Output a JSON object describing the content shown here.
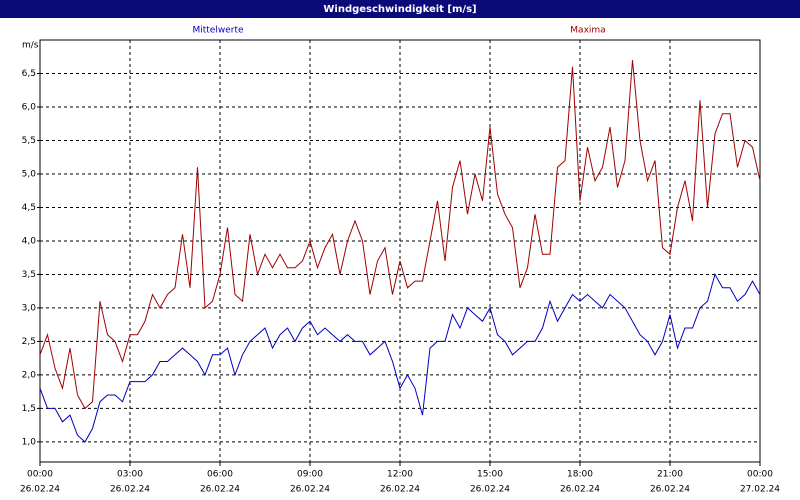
{
  "chart_data": {
    "type": "line",
    "title": "Windgeschwindigkeit [m/s]",
    "y_label": "m/s",
    "grid": true,
    "xlim": [
      0,
      24
    ],
    "xticks": [
      {
        "value": 0,
        "label": "00:00"
      },
      {
        "value": 3,
        "label": "03:00"
      },
      {
        "value": 6,
        "label": "06:00"
      },
      {
        "value": 9,
        "label": "09:00"
      },
      {
        "value": 12,
        "label": "12:00"
      },
      {
        "value": 15,
        "label": "15:00"
      },
      {
        "value": 18,
        "label": "18:00"
      },
      {
        "value": 21,
        "label": "21:00"
      },
      {
        "value": 24,
        "label": "00:00"
      }
    ],
    "xtick_dates": [
      "26.02.24",
      "26.02.24",
      "26.02.24",
      "26.02.24",
      "26.02.24",
      "26.02.24",
      "26.02.24",
      "26.02.24",
      "27.02.24"
    ],
    "ylim": [
      0.7,
      7.0
    ],
    "yticks": [
      {
        "value": 1.0,
        "label": "1,0"
      },
      {
        "value": 1.5,
        "label": "1,5"
      },
      {
        "value": 2.0,
        "label": "2,0"
      },
      {
        "value": 2.5,
        "label": "2,5"
      },
      {
        "value": 3.0,
        "label": "3,0"
      },
      {
        "value": 3.5,
        "label": "3,5"
      },
      {
        "value": 4.0,
        "label": "4,0"
      },
      {
        "value": 4.5,
        "label": "4,5"
      },
      {
        "value": 5.0,
        "label": "5,0"
      },
      {
        "value": 5.5,
        "label": "5,5"
      },
      {
        "value": 6.0,
        "label": "6,0"
      },
      {
        "value": 6.5,
        "label": "6,5"
      }
    ],
    "x": [
      0,
      0.25,
      0.5,
      0.75,
      1,
      1.25,
      1.5,
      1.75,
      2,
      2.25,
      2.5,
      2.75,
      3,
      3.25,
      3.5,
      3.75,
      4,
      4.25,
      4.5,
      4.75,
      5,
      5.25,
      5.5,
      5.75,
      6,
      6.25,
      6.5,
      6.75,
      7,
      7.25,
      7.5,
      7.75,
      8,
      8.25,
      8.5,
      8.75,
      9,
      9.25,
      9.5,
      9.75,
      10,
      10.25,
      10.5,
      10.75,
      11,
      11.25,
      11.5,
      11.75,
      12,
      12.25,
      12.5,
      12.75,
      13,
      13.25,
      13.5,
      13.75,
      14,
      14.25,
      14.5,
      14.75,
      15,
      15.25,
      15.5,
      15.75,
      16,
      16.25,
      16.5,
      16.75,
      17,
      17.25,
      17.5,
      17.75,
      18,
      18.25,
      18.5,
      18.75,
      19,
      19.25,
      19.5,
      19.75,
      20,
      20.25,
      20.5,
      20.75,
      21,
      21.25,
      21.5,
      21.75,
      22,
      22.25,
      22.5,
      22.75,
      23,
      23.25,
      23.5,
      23.75,
      24
    ],
    "series": [
      {
        "name": "Mittelwerte",
        "color": "#0000c0",
        "values": [
          1.8,
          1.5,
          1.5,
          1.3,
          1.4,
          1.1,
          1.0,
          1.2,
          1.6,
          1.7,
          1.7,
          1.6,
          1.9,
          1.9,
          1.9,
          2.0,
          2.2,
          2.2,
          2.3,
          2.4,
          2.3,
          2.2,
          2.0,
          2.3,
          2.3,
          2.4,
          2.0,
          2.3,
          2.5,
          2.6,
          2.7,
          2.4,
          2.6,
          2.7,
          2.5,
          2.7,
          2.8,
          2.6,
          2.7,
          2.6,
          2.5,
          2.6,
          2.5,
          2.5,
          2.3,
          2.4,
          2.5,
          2.2,
          1.8,
          2.0,
          1.8,
          1.4,
          2.4,
          2.5,
          2.5,
          2.9,
          2.7,
          3.0,
          2.9,
          2.8,
          3.0,
          2.6,
          2.5,
          2.3,
          2.4,
          2.5,
          2.5,
          2.7,
          3.1,
          2.8,
          3.0,
          3.2,
          3.1,
          3.2,
          3.1,
          3.0,
          3.2,
          3.1,
          3.0,
          2.8,
          2.6,
          2.5,
          2.3,
          2.5,
          2.9,
          2.4,
          2.7,
          2.7,
          3.0,
          3.1,
          3.5,
          3.3,
          3.3,
          3.1,
          3.2,
          3.4,
          3.2
        ]
      },
      {
        "name": "Maxima",
        "color": "#a00000",
        "values": [
          2.3,
          2.6,
          2.1,
          1.8,
          2.4,
          1.7,
          1.5,
          1.6,
          3.1,
          2.6,
          2.5,
          2.2,
          2.6,
          2.6,
          2.8,
          3.2,
          3.0,
          3.2,
          3.3,
          4.1,
          3.3,
          5.1,
          3.0,
          3.1,
          3.5,
          4.2,
          3.2,
          3.1,
          4.1,
          3.5,
          3.8,
          3.6,
          3.8,
          3.6,
          3.6,
          3.7,
          4.0,
          3.6,
          3.9,
          4.1,
          3.5,
          4.0,
          4.3,
          4.0,
          3.2,
          3.7,
          3.9,
          3.2,
          3.7,
          3.3,
          3.4,
          3.4,
          4.0,
          4.6,
          3.7,
          4.8,
          5.2,
          4.4,
          5.0,
          4.6,
          5.7,
          4.7,
          4.4,
          4.2,
          3.3,
          3.6,
          4.4,
          3.8,
          3.8,
          5.1,
          5.2,
          6.6,
          4.6,
          5.4,
          4.9,
          5.1,
          5.7,
          4.8,
          5.2,
          6.7,
          5.5,
          4.9,
          5.2,
          3.9,
          3.8,
          4.5,
          4.9,
          4.3,
          6.1,
          4.5,
          5.6,
          5.9,
          5.9,
          5.1,
          5.5,
          5.4,
          4.9
        ]
      }
    ]
  }
}
